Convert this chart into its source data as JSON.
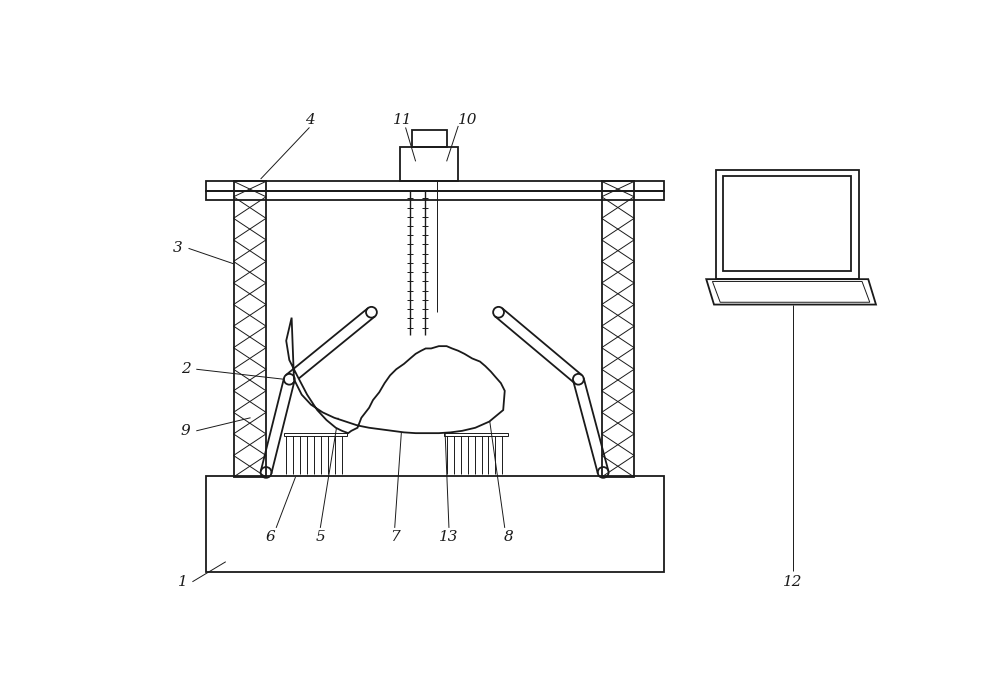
{
  "bg_color": "#ffffff",
  "lc": "#1a1a1a",
  "lw": 1.3,
  "tlw": 0.7,
  "fs": 11
}
